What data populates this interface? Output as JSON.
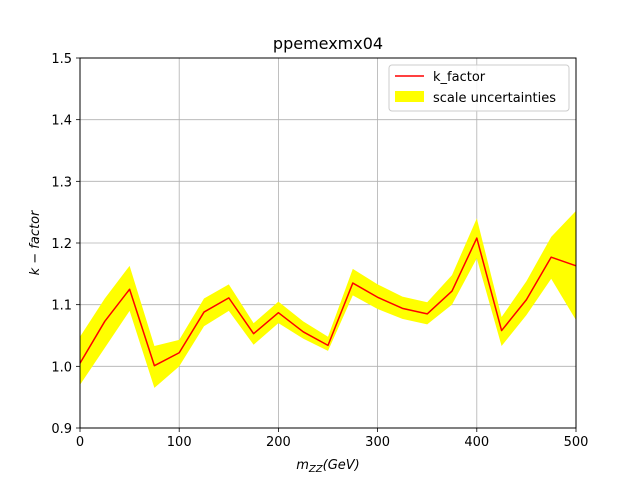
{
  "chart_data": {
    "type": "line",
    "title": "ppemexmx04",
    "xlabel": "m_{ZZ}(GeV)",
    "xlabel_main": "m",
    "xlabel_sub": "ZZ",
    "xlabel_rest": "(GeV)",
    "ylabel": "k − factor",
    "xlim": [
      0,
      500
    ],
    "ylim": [
      0.9,
      1.5
    ],
    "grid": true,
    "legend_position": "top-right",
    "x_ticks": [
      0,
      100,
      200,
      300,
      400,
      500
    ],
    "x_tick_labels": [
      "0",
      "100",
      "200",
      "300",
      "400",
      "500"
    ],
    "y_ticks": [
      0.9,
      1.0,
      1.1,
      1.2,
      1.3,
      1.4,
      1.5
    ],
    "y_tick_labels": [
      "0.9",
      "1.0",
      "1.1",
      "1.2",
      "1.3",
      "1.4",
      "1.5"
    ],
    "x": [
      0,
      25,
      50,
      75,
      100,
      125,
      150,
      175,
      200,
      225,
      250,
      275,
      300,
      325,
      350,
      375,
      400,
      425,
      450,
      475,
      500
    ],
    "series": [
      {
        "name": "k_factor",
        "color": "#ff0000",
        "values": [
          1.005,
          1.073,
          1.125,
          1.001,
          1.022,
          1.088,
          1.111,
          1.053,
          1.087,
          1.056,
          1.034,
          1.135,
          1.112,
          1.094,
          1.085,
          1.122,
          1.208,
          1.058,
          1.108,
          1.177,
          1.163
        ]
      },
      {
        "name": "scale uncertainties",
        "color": "#ffff00",
        "type": "band",
        "lower": [
          0.97,
          1.03,
          1.09,
          0.965,
          1.0,
          1.065,
          1.09,
          1.035,
          1.07,
          1.045,
          1.025,
          1.115,
          1.093,
          1.077,
          1.068,
          1.1,
          1.175,
          1.033,
          1.083,
          1.142,
          1.075
        ],
        "upper": [
          1.048,
          1.11,
          1.163,
          1.033,
          1.043,
          1.11,
          1.133,
          1.07,
          1.105,
          1.073,
          1.048,
          1.158,
          1.133,
          1.113,
          1.104,
          1.148,
          1.24,
          1.08,
          1.138,
          1.21,
          1.252
        ]
      }
    ]
  }
}
